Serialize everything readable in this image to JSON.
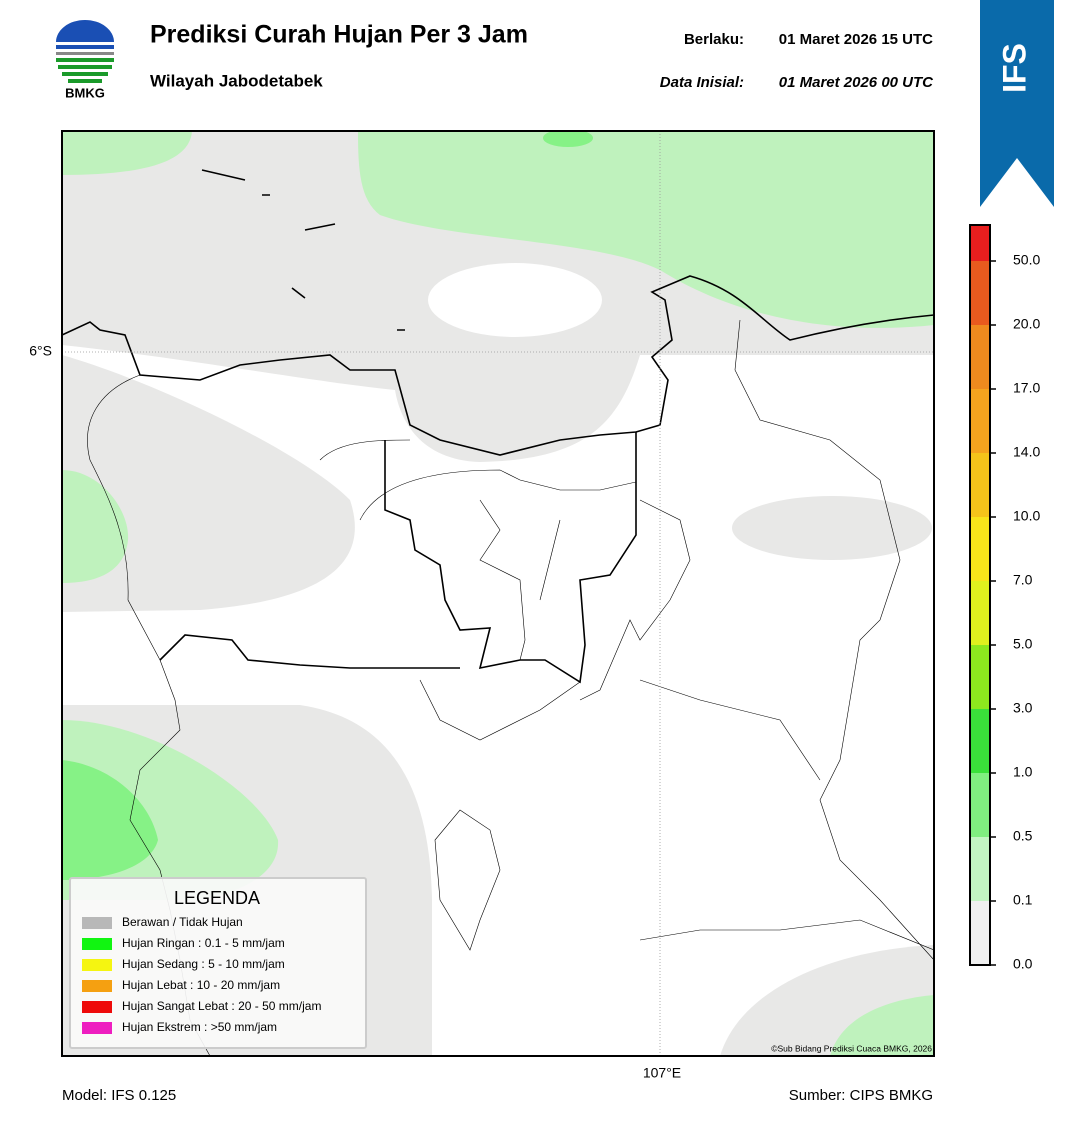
{
  "header": {
    "logo": "BMKG",
    "title": "Prediksi Curah Hujan Per 3 Jam",
    "subtitle": "Wilayah Jabodetabek",
    "valid_label": "Berlaku:",
    "valid": "01 Maret 2026 15 UTC",
    "init_label": "Data Inisial:",
    "init": "01 Maret 2026 00 UTC",
    "badge": "IFS"
  },
  "map": {
    "lat_label": "6°S",
    "lon_label": "107°E",
    "copyright": "©Sub Bidang Prediksi Cuaca BMKG, 2026"
  },
  "legend": {
    "title": "LEGENDA",
    "items": [
      {
        "label": "Berawan / Tidak Hujan",
        "color": "#b8b8b8"
      },
      {
        "label": "Hujan Ringan : 0.1 - 5 mm/jam",
        "color": "#11f511"
      },
      {
        "label": "Hujan Sedang : 5 - 10 mm/jam",
        "color": "#f5f511"
      },
      {
        "label": "Hujan Lebat : 10 - 20 mm/jam",
        "color": "#f5a011"
      },
      {
        "label": "Hujan Sangat Lebat : 20 - 50 mm/jam",
        "color": "#ee0a0a"
      },
      {
        "label": "Hujan Ekstrem : >50 mm/jam",
        "color": "#ee1ec0"
      }
    ]
  },
  "colorbar": {
    "ticks": [
      {
        "value": 0,
        "label": "0.0"
      },
      {
        "value": 0.1,
        "label": "0.1"
      },
      {
        "value": 0.5,
        "label": "0.5"
      },
      {
        "value": 1,
        "label": "1.0"
      },
      {
        "value": 3,
        "label": "3.0"
      },
      {
        "value": 5,
        "label": "5.0"
      },
      {
        "value": 7,
        "label": "7.0"
      },
      {
        "value": 10,
        "label": "10.0"
      },
      {
        "value": 14,
        "label": "14.0"
      },
      {
        "value": 17,
        "label": "17.0"
      },
      {
        "value": 20,
        "label": "20.0"
      },
      {
        "value": 50,
        "label": "50.0"
      }
    ],
    "colors": [
      "#f0f0f0",
      "#c3f5c3",
      "#80ee80",
      "#3ae03a",
      "#8de81e",
      "#e0f01e",
      "#f8e41a",
      "#f5c41a",
      "#f5a41e",
      "#ee8a1e",
      "#e85a1e",
      "#e81e1e",
      "#e81ec0"
    ]
  },
  "footer": {
    "model": "Model: IFS 0.125",
    "source": "Sumber: CIPS BMKG"
  }
}
